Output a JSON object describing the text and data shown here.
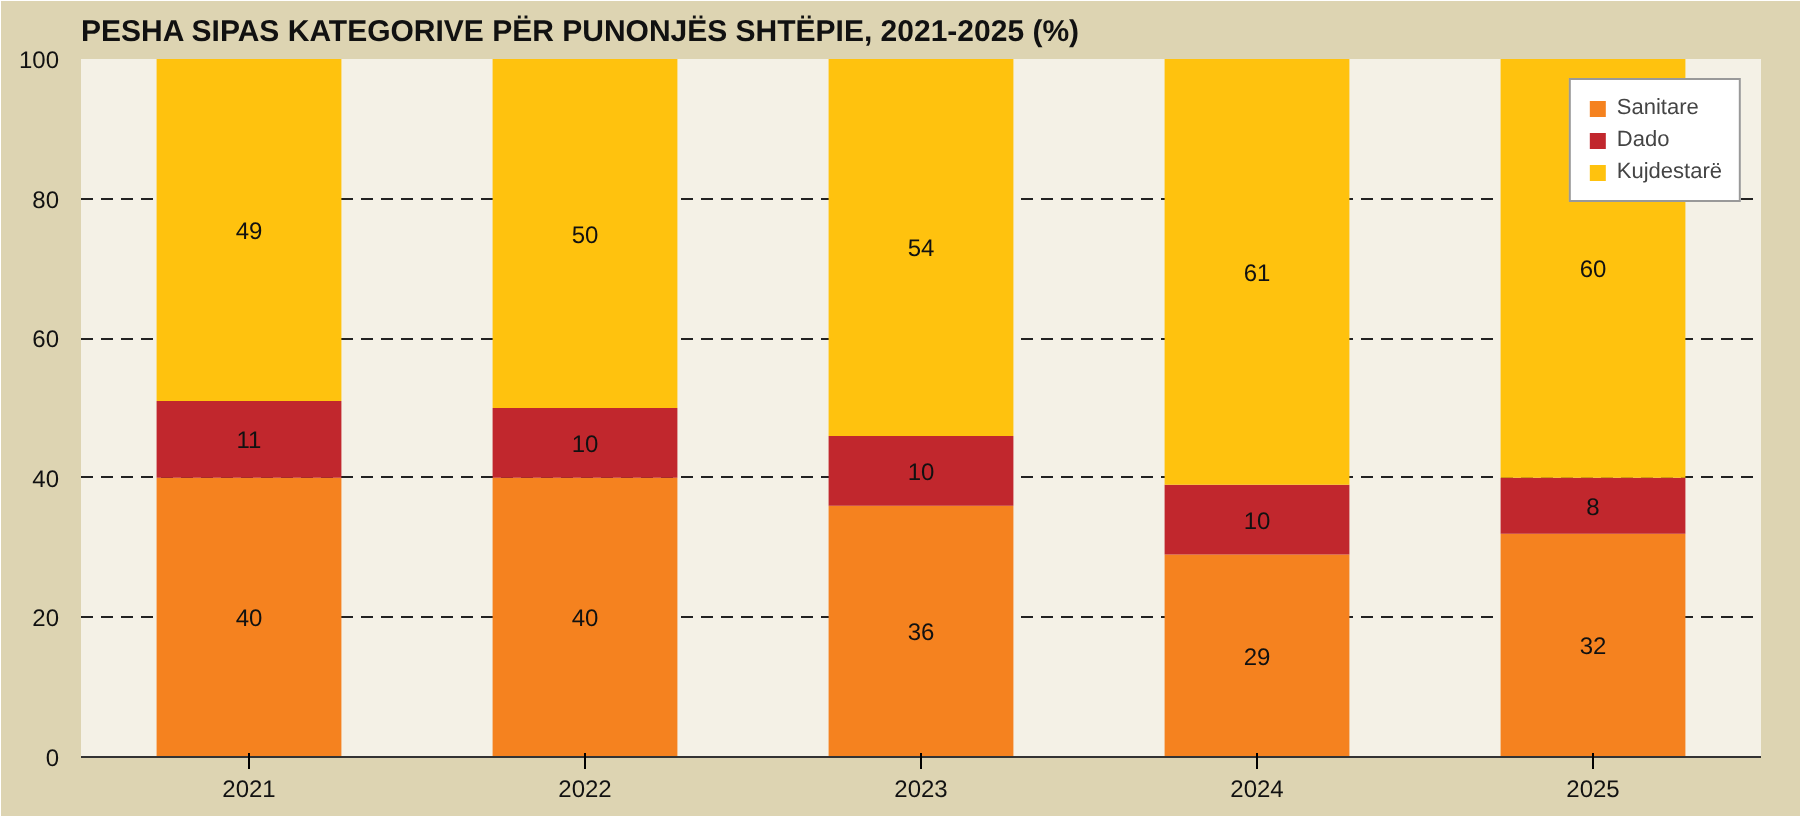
{
  "chart_data": {
    "type": "bar",
    "title": "PESHA SIPAS KATEGORIVE PËR PUNONJËS SHTËPIE, 2021-2025 (%)",
    "categories": [
      "2021",
      "2022",
      "2023",
      "2024",
      "2025"
    ],
    "stacked": true,
    "series": [
      {
        "name": "Sanitare",
        "color": "#f5821f",
        "values": [
          40,
          40,
          36,
          29,
          32
        ]
      },
      {
        "name": "Dado",
        "color": "#c1272d",
        "values": [
          11,
          10,
          10,
          10,
          8
        ]
      },
      {
        "name": "Kujdestarë",
        "color": "#ffc20e",
        "values": [
          49,
          50,
          54,
          61,
          60
        ]
      }
    ],
    "ylim": [
      0,
      100
    ],
    "yticks": [
      0,
      20,
      40,
      60,
      80,
      100
    ],
    "grid": "y",
    "legend": "top right",
    "data_labels": true
  }
}
